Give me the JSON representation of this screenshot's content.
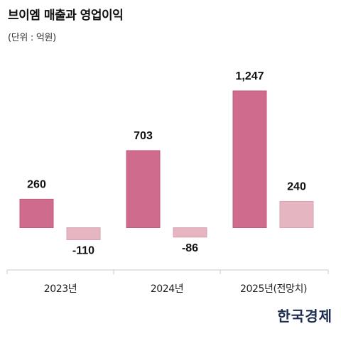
{
  "title": "브이엠 매출과 영업이익",
  "unit": "(단위 : 억원)",
  "logo": "한국경제",
  "colors": {
    "revenue": "#cf6b8d",
    "revenue_border": "#c25a7e",
    "operating_profit": "#e5b5c1",
    "operating_profit_border": "#d9a2b1",
    "axis": "#c8c8c8"
  },
  "chart_data": {
    "type": "bar",
    "categories": [
      "2023년",
      "2024년",
      "2025년(전망치)"
    ],
    "series": [
      {
        "values": [
          260,
          703,
          1247
        ]
      },
      {
        "values": [
          -110,
          -86,
          240
        ]
      }
    ],
    "value_labels": [
      [
        "260",
        "703",
        "1,247"
      ],
      [
        "-110",
        "-86",
        "240"
      ]
    ],
    "title": "브이엠 매출과 영업이익",
    "ylabel": "",
    "ylim": [
      -450,
      1247
    ],
    "grid": false,
    "legend": "none"
  }
}
